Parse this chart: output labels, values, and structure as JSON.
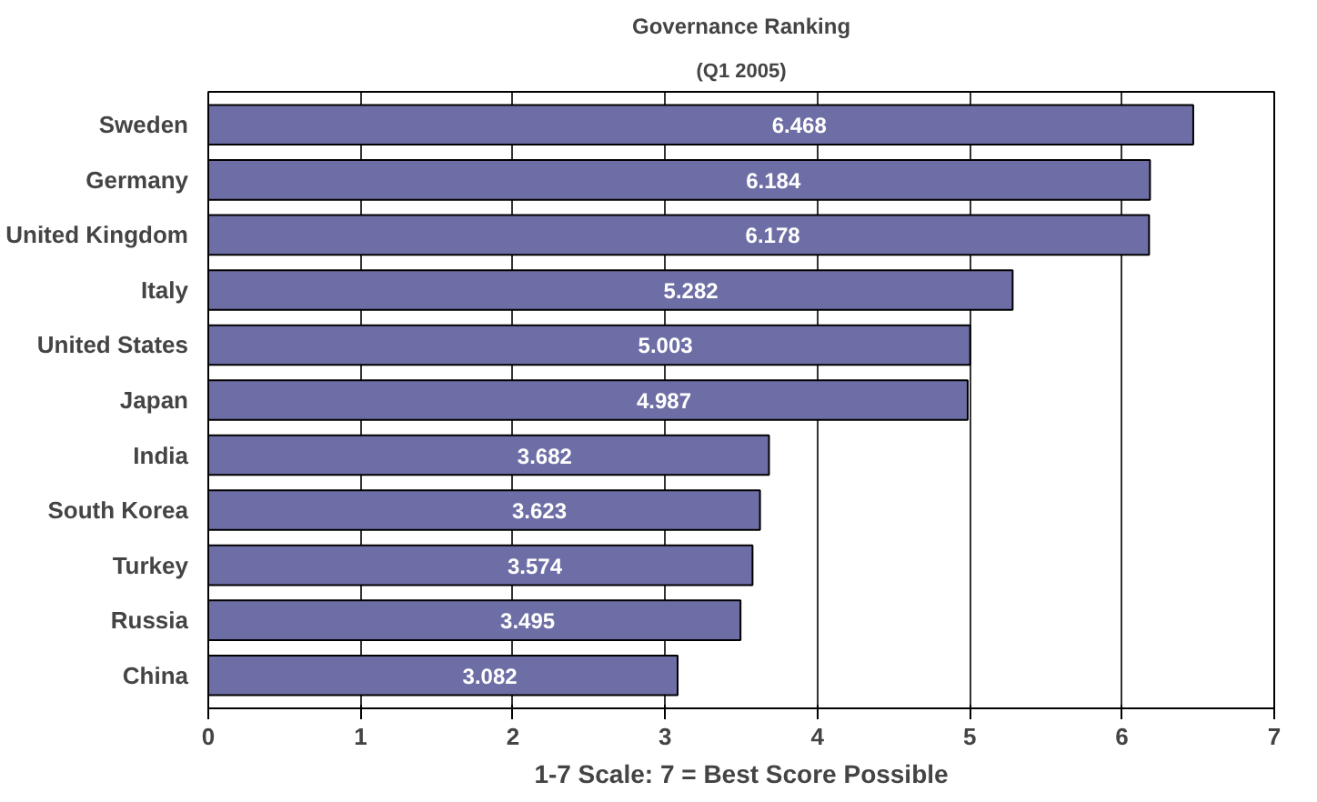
{
  "chart_data": {
    "type": "bar",
    "orientation": "horizontal",
    "title": "Governance Ranking",
    "subtitle": "(Q1 2005)",
    "xlabel": "1-7 Scale: 7 = Best Score Possible",
    "categories": [
      "Sweden",
      "Germany",
      "United Kingdom",
      "Italy",
      "United States",
      "Japan",
      "India",
      "South Korea",
      "Turkey",
      "Russia",
      "China"
    ],
    "values": [
      6.468,
      6.184,
      6.178,
      5.282,
      5.003,
      4.987,
      3.682,
      3.623,
      3.574,
      3.495,
      3.082
    ],
    "color": "#6e6ea6",
    "xlim": [
      0,
      7
    ],
    "xticks": [
      0,
      1,
      2,
      3,
      4,
      5,
      6,
      7
    ],
    "grid": "x",
    "data_labels": true
  }
}
